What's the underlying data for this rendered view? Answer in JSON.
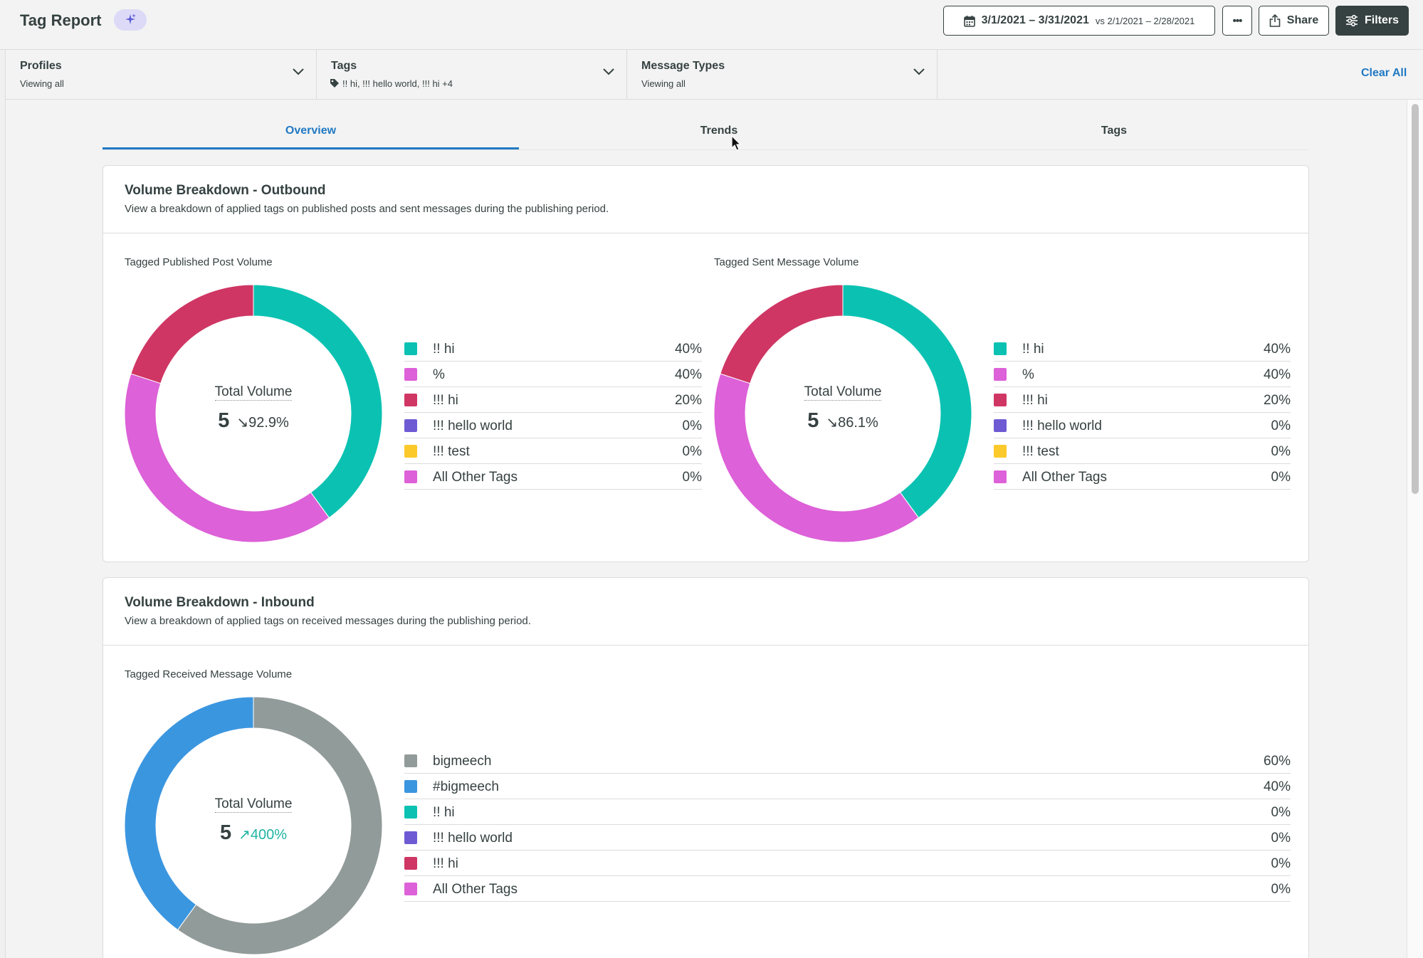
{
  "header": {
    "title": "Tag Report",
    "ai_icon": "sparkle-icon",
    "date_range": "3/1/2021 – 3/31/2021",
    "date_compare": "vs 2/1/2021 – 2/28/2021",
    "more_label": "•••",
    "share_label": "Share",
    "filters_label": "Filters"
  },
  "filters": {
    "profiles": {
      "title": "Profiles",
      "value": "Viewing all"
    },
    "tags": {
      "title": "Tags",
      "value": "!! hi, !!! hello world, !!! hi +4"
    },
    "message_types": {
      "title": "Message Types",
      "value": "Viewing all"
    },
    "clear_all": "Clear All"
  },
  "tabs": [
    {
      "label": "Overview",
      "active": true
    },
    {
      "label": "Trends",
      "active": false
    },
    {
      "label": "Tags",
      "active": false
    }
  ],
  "colors": {
    "teal": "#0bc2b2",
    "magenta": "#dd61d8",
    "crimson": "#cf3664",
    "purple": "#6e5bd4",
    "yellow": "#fbc92a",
    "gray": "#919b99",
    "blue": "#3b96e0",
    "accent": "#2079c3"
  },
  "outbound": {
    "title": "Volume Breakdown - Outbound",
    "description": "View a breakdown of applied tags on published posts and sent messages during the publishing period.",
    "published": {
      "label": "Tagged Published Post Volume",
      "center_title": "Total Volume",
      "total": "5",
      "change": "↘92.9%"
    },
    "sent": {
      "label": "Tagged Sent Message Volume",
      "center_title": "Total Volume",
      "total": "5",
      "change": "↘86.1%"
    }
  },
  "inbound": {
    "title": "Volume Breakdown - Inbound",
    "description": "View a breakdown of applied tags on received messages during the publishing period.",
    "received": {
      "label": "Tagged Received Message Volume",
      "center_title": "Total Volume",
      "total": "5",
      "change": "↗400%"
    }
  },
  "chart_data": [
    {
      "type": "pie",
      "title": "Tagged Published Post Volume",
      "categories": [
        "!! hi",
        "%",
        "!!! hi",
        "!!! hello world",
        "!!! test",
        "All Other Tags"
      ],
      "values": [
        40,
        40,
        20,
        0,
        0,
        0
      ],
      "value_labels": [
        "40%",
        "40%",
        "20%",
        "0%",
        "0%",
        "0%"
      ],
      "colors": [
        "#0bc2b2",
        "#dd61d8",
        "#cf3664",
        "#6e5bd4",
        "#fbc92a",
        "#dd61d8"
      ]
    },
    {
      "type": "pie",
      "title": "Tagged Sent Message Volume",
      "categories": [
        "!! hi",
        "%",
        "!!! hi",
        "!!! hello world",
        "!!! test",
        "All Other Tags"
      ],
      "values": [
        40,
        40,
        20,
        0,
        0,
        0
      ],
      "value_labels": [
        "40%",
        "40%",
        "20%",
        "0%",
        "0%",
        "0%"
      ],
      "colors": [
        "#0bc2b2",
        "#dd61d8",
        "#cf3664",
        "#6e5bd4",
        "#fbc92a",
        "#dd61d8"
      ]
    },
    {
      "type": "pie",
      "title": "Tagged Received Message Volume",
      "categories": [
        "bigmeech",
        "#bigmeech",
        "!! hi",
        "!!! hello world",
        "!!! hi",
        "All Other Tags"
      ],
      "values": [
        60,
        40,
        0,
        0,
        0,
        0
      ],
      "value_labels": [
        "60%",
        "40%",
        "0%",
        "0%",
        "0%",
        "0%"
      ],
      "colors": [
        "#919b99",
        "#3b96e0",
        "#0bc2b2",
        "#6e5bd4",
        "#cf3664",
        "#dd61d8"
      ]
    }
  ]
}
